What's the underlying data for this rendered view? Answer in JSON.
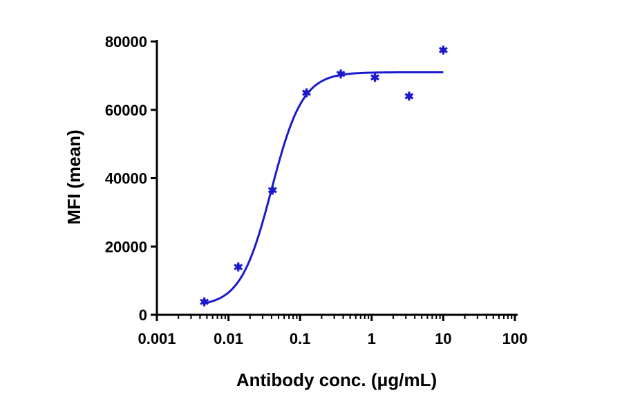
{
  "chart_data": {
    "type": "scatter",
    "title": "",
    "xlabel": "Antibody conc. (μg/mL)",
    "ylabel": "MFI (mean)",
    "x_scale": "log",
    "xlim": [
      0.001,
      100
    ],
    "ylim": [
      0,
      80000
    ],
    "x_ticks": [
      "0.001",
      "0.01",
      "0.1",
      "1",
      "10",
      "100"
    ],
    "y_ticks": [
      "0",
      "20000",
      "40000",
      "60000",
      "80000"
    ],
    "grid": false,
    "legend": "none",
    "color": "#1a1acc",
    "series": [
      {
        "marker": "asterisk",
        "x": [
          0.0046,
          0.0137,
          0.0412,
          0.123,
          0.37,
          1.11,
          3.33,
          10
        ],
        "y": [
          3800,
          14000,
          36500,
          65000,
          70500,
          69500,
          64000,
          77500
        ]
      }
    ],
    "fit_curve": {
      "type": "4PL",
      "bottom": 2500,
      "top": 71000,
      "ec50": 0.04,
      "hill": 2.0,
      "x_range": [
        0.0046,
        10
      ]
    }
  }
}
